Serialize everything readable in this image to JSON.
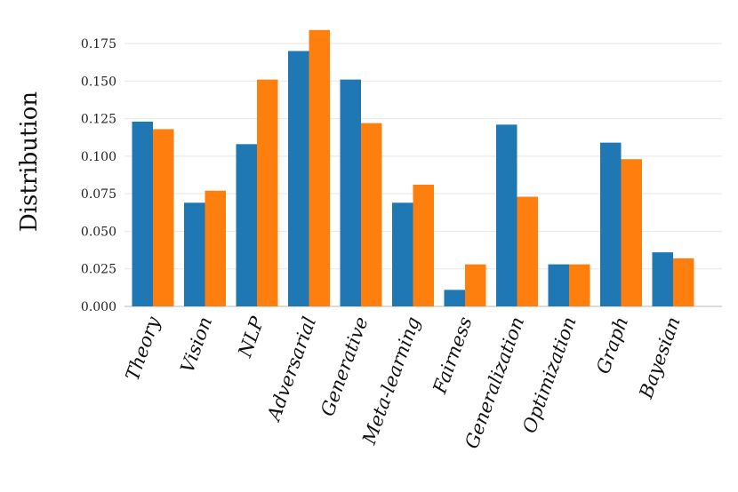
{
  "chart_data": {
    "type": "bar",
    "ylabel": "Distribution",
    "xlabel": "",
    "ylim": [
      0,
      0.18
    ],
    "yticks": [
      "0.000",
      "0.025",
      "0.050",
      "0.075",
      "0.100",
      "0.125",
      "0.150",
      "0.175"
    ],
    "grid": "horizontal",
    "categories": [
      "Theory",
      "Vision",
      "NLP",
      "Adversarial",
      "Generative",
      "Meta-learning",
      "Fairness",
      "Generalization",
      "Optimization",
      "Graph",
      "Bayesian"
    ],
    "series": [
      {
        "color": "#1f77b4",
        "values": [
          0.123,
          0.069,
          0.108,
          0.17,
          0.151,
          0.069,
          0.011,
          0.121,
          0.028,
          0.109,
          0.036
        ]
      },
      {
        "color": "#ff7f0e",
        "values": [
          0.118,
          0.077,
          0.151,
          0.184,
          0.122,
          0.081,
          0.028,
          0.073,
          0.028,
          0.098,
          0.032
        ]
      }
    ]
  }
}
